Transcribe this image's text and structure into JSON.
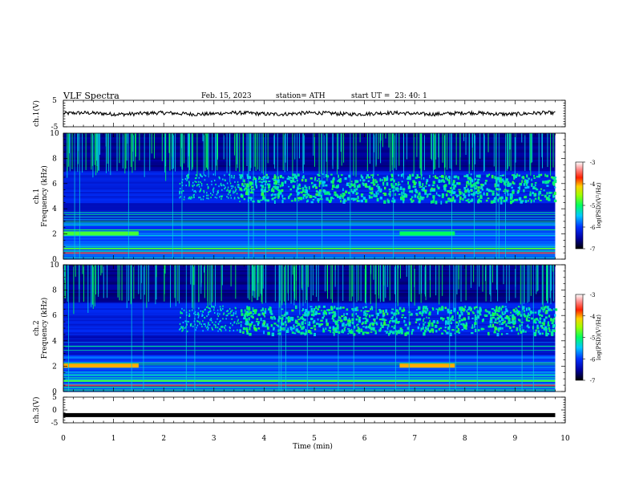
{
  "header": {
    "title": "VLF  Spectra",
    "date": "Feb. 15, 2023",
    "station": "station= ATH",
    "start_label": "start  UT  =",
    "start_value": "23: 40: 1"
  },
  "chart_data": [
    {
      "type": "line",
      "panel": "ch1-waveform",
      "ylabel": "ch.1(V)",
      "xlim": [
        0,
        10
      ],
      "ylim": [
        -5,
        5
      ],
      "ytick_labels": [
        "5",
        "-5"
      ],
      "series": [
        {
          "note_value_approx": 0.0,
          "x_end": 9.8
        }
      ]
    },
    {
      "type": "heatmap",
      "panel": "ch1-spectrogram",
      "ylabel_line1": "ch.1",
      "ylabel_line2": "Frequency  (kHz)",
      "xlim": [
        0,
        10
      ],
      "ylim": [
        0,
        10
      ],
      "ytick_labels": [
        "0",
        "2",
        "4",
        "6",
        "8",
        "10"
      ],
      "data_x_end": 9.8,
      "colorbar": {
        "label": "log(PSD)(V²/Hz)",
        "range": [
          -7,
          -3
        ],
        "tick_labels": [
          "-3",
          "-4",
          "-5",
          "-6",
          "-7"
        ]
      }
    },
    {
      "type": "heatmap",
      "panel": "ch2-spectrogram",
      "ylabel_line1": "ch.2",
      "ylabel_line2": "Frequency  (kHz)",
      "xlim": [
        0,
        10
      ],
      "ylim": [
        0,
        10
      ],
      "ytick_labels": [
        "0",
        "2",
        "4",
        "6",
        "8",
        "10"
      ],
      "data_x_end": 9.8,
      "colorbar": {
        "label": "log(PSD)(V²/Hz)",
        "range": [
          -7,
          -3
        ],
        "tick_labels": [
          "-3",
          "-4",
          "-5",
          "-6",
          "-7"
        ]
      }
    },
    {
      "type": "line",
      "panel": "ch3-waveform",
      "ylabel": "ch.3(V)",
      "xlim": [
        0,
        10
      ],
      "ylim": [
        -5,
        5
      ],
      "ytick_labels": [
        "5",
        "0",
        "-5"
      ],
      "series": [
        {
          "note_value_approx": -2.0,
          "x_end": 9.8
        }
      ]
    }
  ],
  "x_axis": {
    "label": "Time  (min)",
    "tick_labels": [
      "0",
      "1",
      "2",
      "3",
      "4",
      "5",
      "6",
      "7",
      "8",
      "9",
      "10"
    ]
  }
}
